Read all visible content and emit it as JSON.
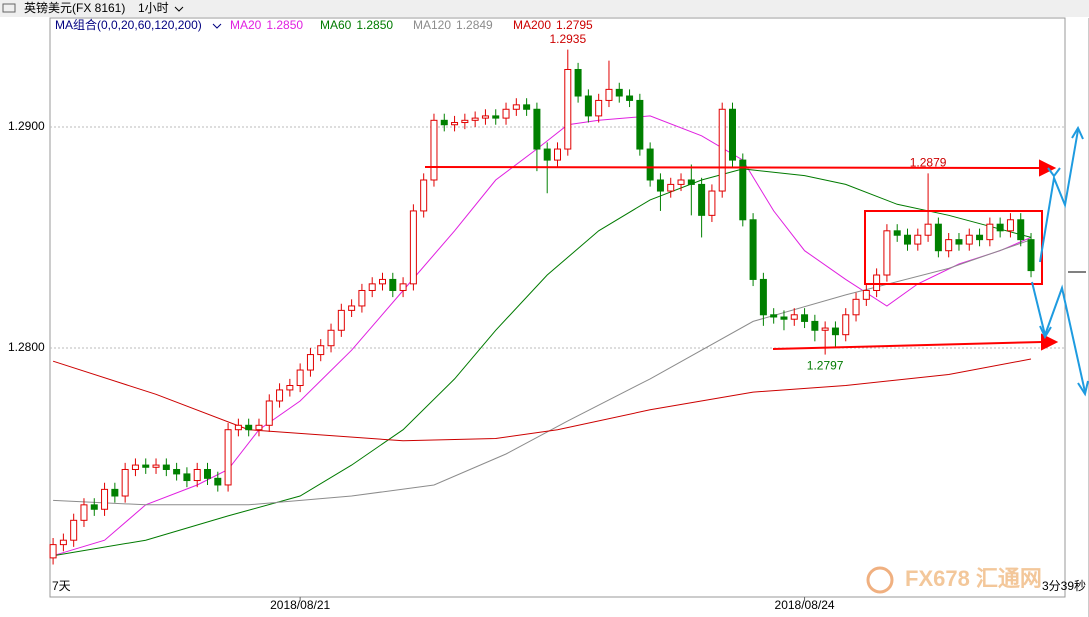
{
  "header": {
    "symbol": "英镑美元(FX 8161)",
    "period": "1小时",
    "ma_group": "MA组合(0,0,20,60,120,200)"
  },
  "chart_data": {
    "type": "candlestick",
    "open": [
      1.2705,
      1.2711,
      1.2713,
      1.2722,
      1.2729,
      1.2727,
      1.2736,
      1.2733,
      1.2745,
      1.2747,
      1.2746,
      1.2747,
      1.2745,
      1.2743,
      1.274,
      1.2745,
      1.2741,
      1.2738,
      1.2763,
      1.2765,
      1.2763,
      1.2765,
      1.2776,
      1.2781,
      1.2783,
      1.279,
      1.2797,
      1.2801,
      1.2808,
      1.2817,
      1.2819,
      1.2826,
      1.2829,
      1.2831,
      1.2826,
      1.2829,
      1.2862,
      1.2876,
      1.2903,
      1.2901,
      1.2902,
      1.2903,
      1.2904,
      1.2905,
      1.2904,
      1.2908,
      1.291,
      1.2908,
      1.289,
      1.2885,
      1.289,
      1.2926,
      1.2914,
      1.2905,
      1.2912,
      1.2917,
      1.2914,
      1.2912,
      1.289,
      1.2876,
      1.2871,
      1.2874,
      1.2876,
      1.2874,
      1.286,
      1.2871,
      1.2908,
      1.2885,
      1.2858,
      1.2831,
      1.2815,
      1.2814,
      1.2813,
      1.2815,
      1.2812,
      1.2808,
      1.2809,
      1.2806,
      1.2815,
      1.2822,
      1.2826,
      1.2833,
      1.2853,
      1.2851,
      1.2847,
      1.2851,
      1.2856,
      1.2844,
      1.2849,
      1.2847,
      1.2851,
      1.2849,
      1.2856,
      1.2853,
      1.2858,
      1.2849
    ],
    "high": [
      1.2714,
      1.2716,
      1.2725,
      1.2732,
      1.2732,
      1.2739,
      1.2739,
      1.2748,
      1.275,
      1.275,
      1.275,
      1.275,
      1.2748,
      1.2746,
      1.2748,
      1.2748,
      1.2744,
      1.2766,
      1.2768,
      1.2768,
      1.2768,
      1.2779,
      1.2784,
      1.2786,
      1.2793,
      1.28,
      1.2804,
      1.2811,
      1.282,
      1.2822,
      1.2829,
      1.2832,
      1.2834,
      1.2834,
      1.2832,
      1.2865,
      1.2879,
      1.2906,
      1.2906,
      1.2905,
      1.2906,
      1.2907,
      1.2908,
      1.2908,
      1.2911,
      1.2913,
      1.2913,
      1.2911,
      1.2893,
      1.2893,
      1.2935,
      1.2929,
      1.2917,
      1.2915,
      1.293,
      1.292,
      1.2917,
      1.2915,
      1.2893,
      1.2879,
      1.2877,
      1.2879,
      1.2883,
      1.2877,
      1.2874,
      1.2911,
      1.2911,
      1.2888,
      1.2861,
      1.2834,
      1.2818,
      1.2817,
      1.2818,
      1.2818,
      1.2815,
      1.2812,
      1.2812,
      1.2818,
      1.2825,
      1.2829,
      1.2836,
      1.2856,
      1.2856,
      1.2854,
      1.2854,
      1.2879,
      1.2859,
      1.2852,
      1.2852,
      1.2854,
      1.2854,
      1.2859,
      1.2859,
      1.2861,
      1.2861,
      1.2852
    ],
    "low": [
      1.2702,
      1.2708,
      1.271,
      1.2719,
      1.2724,
      1.2724,
      1.273,
      1.273,
      1.2742,
      1.2743,
      1.2743,
      1.2742,
      1.274,
      1.2737,
      1.2737,
      1.2738,
      1.2735,
      1.2735,
      1.276,
      1.276,
      1.276,
      1.2762,
      1.2773,
      1.2778,
      1.278,
      1.2787,
      1.2794,
      1.2798,
      1.2805,
      1.2814,
      1.2816,
      1.2823,
      1.2826,
      1.2823,
      1.2823,
      1.2826,
      1.2859,
      1.2873,
      1.2898,
      1.2898,
      1.2899,
      1.29,
      1.2901,
      1.2901,
      1.2901,
      1.2905,
      1.2905,
      1.288,
      1.287,
      1.2882,
      1.2887,
      1.2911,
      1.2902,
      1.2902,
      1.2909,
      1.2911,
      1.2909,
      1.2887,
      1.2873,
      1.2862,
      1.2868,
      1.2871,
      1.286,
      1.285,
      1.2857,
      1.2868,
      1.2882,
      1.2855,
      1.2828,
      1.281,
      1.2811,
      1.2808,
      1.281,
      1.2809,
      1.2803,
      1.2797,
      1.28,
      1.2803,
      1.2812,
      1.2819,
      1.2823,
      1.283,
      1.2848,
      1.2844,
      1.2844,
      1.2848,
      1.2841,
      1.2841,
      1.2844,
      1.2844,
      1.2846,
      1.2846,
      1.285,
      1.285,
      1.2846,
      1.2832
    ],
    "close": [
      1.2711,
      1.2713,
      1.2722,
      1.2729,
      1.2727,
      1.2736,
      1.2733,
      1.2745,
      1.2747,
      1.2746,
      1.2747,
      1.2745,
      1.2743,
      1.274,
      1.2745,
      1.2741,
      1.2738,
      1.2763,
      1.2765,
      1.2763,
      1.2765,
      1.2776,
      1.2781,
      1.2783,
      1.279,
      1.2797,
      1.2801,
      1.2808,
      1.2817,
      1.2819,
      1.2826,
      1.2829,
      1.2831,
      1.2826,
      1.2829,
      1.2862,
      1.2876,
      1.2903,
      1.2901,
      1.2902,
      1.2903,
      1.2904,
      1.2905,
      1.2904,
      1.2908,
      1.291,
      1.2908,
      1.289,
      1.2885,
      1.289,
      1.2926,
      1.2914,
      1.2905,
      1.2912,
      1.2917,
      1.2914,
      1.2912,
      1.289,
      1.2876,
      1.2871,
      1.2874,
      1.2876,
      1.2874,
      1.286,
      1.2871,
      1.2908,
      1.2885,
      1.2858,
      1.2831,
      1.2815,
      1.2814,
      1.2813,
      1.2815,
      1.2812,
      1.2808,
      1.2809,
      1.2806,
      1.2815,
      1.2822,
      1.2826,
      1.2833,
      1.2853,
      1.2851,
      1.2847,
      1.2851,
      1.2856,
      1.2844,
      1.2849,
      1.2847,
      1.2851,
      1.2849,
      1.2856,
      1.2853,
      1.2858,
      1.2849,
      1.2835
    ],
    "up_color": "#e00000",
    "down_color": "#008000",
    "high_labels": [
      50,
      85
    ],
    "low_labels": [
      75
    ],
    "series": [
      {
        "name": "MA20",
        "color": "#e020e0",
        "last_label": "1.2850",
        "x": [
          0,
          5,
          9,
          14,
          17,
          20,
          24,
          29,
          34,
          39,
          43,
          47,
          50,
          53,
          58,
          63,
          67,
          70,
          73,
          77,
          81,
          84,
          88,
          92,
          95
        ],
        "values": [
          1.2706,
          1.2713,
          1.2729,
          1.2738,
          1.2745,
          1.2763,
          1.2776,
          1.2799,
          1.2826,
          1.2853,
          1.2876,
          1.289,
          1.2901,
          1.2903,
          1.2905,
          1.2896,
          1.2885,
          1.2862,
          1.2844,
          1.2831,
          1.2819,
          1.2829,
          1.2838,
          1.2844,
          1.285
        ]
      },
      {
        "name": "MA60",
        "color": "#007a00",
        "last_label": "1.2850",
        "x": [
          0,
          9,
          17,
          24,
          29,
          34,
          39,
          43,
          48,
          53,
          58,
          63,
          67,
          73,
          77,
          82,
          87,
          95
        ],
        "values": [
          1.2706,
          1.2713,
          1.2724,
          1.2733,
          1.2747,
          1.2763,
          1.2786,
          1.2808,
          1.2833,
          1.2853,
          1.2867,
          1.2876,
          1.2881,
          1.2878,
          1.2874,
          1.2865,
          1.286,
          1.285
        ]
      },
      {
        "name": "MA120",
        "color": "#8c8c8c",
        "last_label": "1.2849",
        "x": [
          0,
          9,
          19,
          29,
          37,
          44,
          50,
          58,
          68,
          77,
          87,
          95
        ],
        "values": [
          1.2731,
          1.2729,
          1.2729,
          1.2733,
          1.2738,
          1.2752,
          1.2767,
          1.2786,
          1.2812,
          1.2824,
          1.2836,
          1.2849
        ]
      },
      {
        "name": "MA200",
        "color": "#cc0000",
        "last_label": "1.2795",
        "x": [
          0,
          10,
          19,
          34,
          43,
          49,
          58,
          68,
          77,
          87,
          95
        ],
        "values": [
          1.2794,
          1.2779,
          1.2763,
          1.2758,
          1.2759,
          1.2763,
          1.2772,
          1.278,
          1.2783,
          1.2788,
          1.2795
        ]
      }
    ],
    "xlim": [
      -0.3,
      98.3
    ],
    "xticks": [
      {
        "value": 24,
        "label": "2018/08/21"
      },
      {
        "value": 73,
        "label": "2018/08/24"
      }
    ],
    "ylim": [
      1.26873,
      1.29493
    ],
    "yticks": [
      {
        "value": 1.28,
        "label": "1.2800"
      },
      {
        "value": 1.29,
        "label": "1.2900"
      }
    ],
    "grid": true
  },
  "footer": {
    "range": "7天",
    "timer": "3分39秒",
    "watermark": "FX678 汇通网"
  }
}
